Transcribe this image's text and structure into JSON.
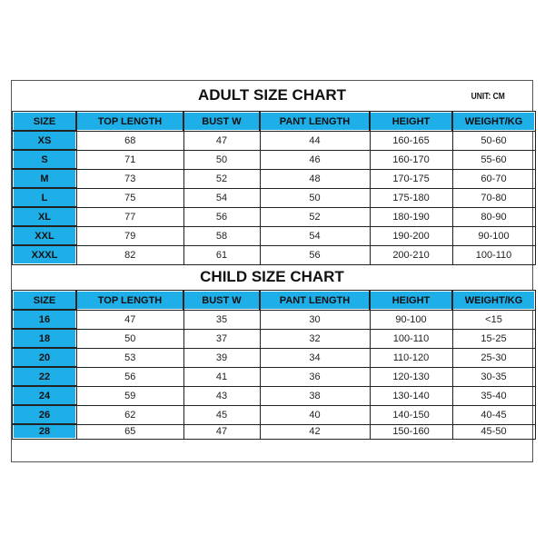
{
  "adult": {
    "title": "ADULT SIZE CHART",
    "unit": "UNIT: CM",
    "headers": [
      "SIZE",
      "TOP LENGTH",
      "BUST W",
      "PANT LENGTH",
      "HEIGHT",
      "WEIGHT/KG"
    ],
    "rows": [
      [
        "XS",
        "68",
        "47",
        "44",
        "160-165",
        "50-60"
      ],
      [
        "S",
        "71",
        "50",
        "46",
        "160-170",
        "55-60"
      ],
      [
        "M",
        "73",
        "52",
        "48",
        "170-175",
        "60-70"
      ],
      [
        "L",
        "75",
        "54",
        "50",
        "175-180",
        "70-80"
      ],
      [
        "XL",
        "77",
        "56",
        "52",
        "180-190",
        "80-90"
      ],
      [
        "XXL",
        "79",
        "58",
        "54",
        "190-200",
        "90-100"
      ],
      [
        "XXXL",
        "82",
        "61",
        "56",
        "200-210",
        "100-110"
      ]
    ]
  },
  "child": {
    "title": "CHILD SIZE CHART",
    "headers": [
      "SIZE",
      "TOP LENGTH",
      "BUST W",
      "PANT LENGTH",
      "HEIGHT",
      "WEIGHT/KG"
    ],
    "rows": [
      [
        "16",
        "47",
        "35",
        "30",
        "90-100",
        "<15"
      ],
      [
        "18",
        "50",
        "37",
        "32",
        "100-110",
        "15-25"
      ],
      [
        "20",
        "53",
        "39",
        "34",
        "110-120",
        "25-30"
      ],
      [
        "22",
        "56",
        "41",
        "36",
        "120-130",
        "30-35"
      ],
      [
        "24",
        "59",
        "43",
        "38",
        "130-140",
        "35-40"
      ],
      [
        "26",
        "62",
        "45",
        "40",
        "140-150",
        "40-45"
      ],
      [
        "28",
        "65",
        "47",
        "42",
        "150-160",
        "45-50"
      ]
    ]
  },
  "colors": {
    "header_blue": "#1eaee8",
    "border": "#222222"
  }
}
